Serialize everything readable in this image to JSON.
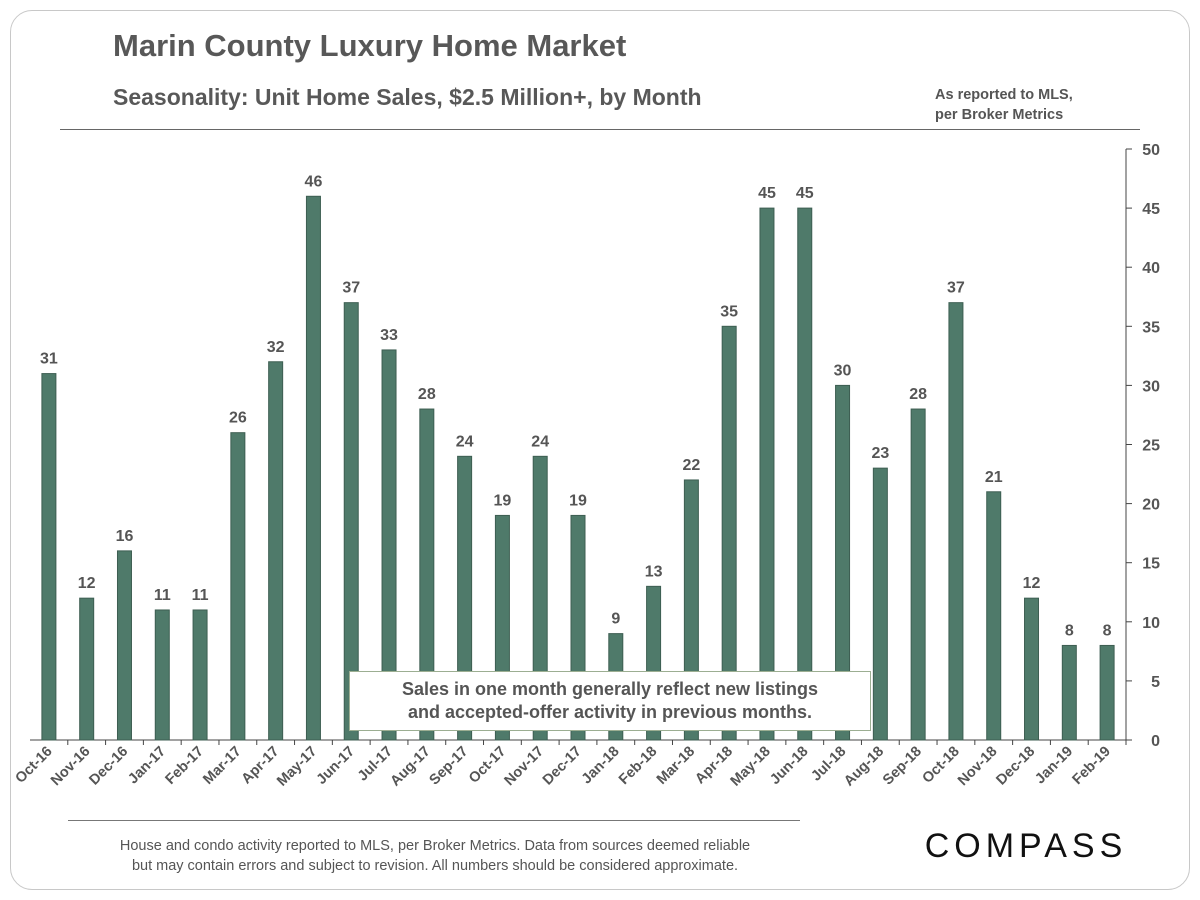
{
  "header": {
    "title": "Marin County Luxury Home Market",
    "subtitle": "Seasonality:  Unit Home Sales, $2.5 Million+,  by Month",
    "source_line1": "As reported to MLS,",
    "source_line2": "per Broker Metrics"
  },
  "annotation": {
    "line1": "Sales in one month generally reflect new listings",
    "line2": "and accepted-offer activity in previous months."
  },
  "footer": {
    "line1": "House and condo activity reported to MLS, per Broker Metrics. Data from sources deemed reliable",
    "line2": "but may contain errors and subject to revision.  All numbers should be considered approximate.",
    "logo_text": "COMPASS"
  },
  "colors": {
    "bar": "#4f7a6a",
    "bar_edge": "#3d5e52",
    "text": "#555555",
    "axis": "#444444"
  },
  "chart_data": {
    "type": "bar",
    "title": "Seasonality:  Unit Home Sales, $2.5 Million+,  by Month",
    "xlabel": "",
    "ylabel": "",
    "y_axis_side": "right",
    "ylim": [
      0,
      50
    ],
    "yticks": [
      0,
      5,
      10,
      15,
      20,
      25,
      30,
      35,
      40,
      45,
      50
    ],
    "grid": false,
    "categories": [
      "Oct-16",
      "Nov-16",
      "Dec-16",
      "Jan-17",
      "Feb-17",
      "Mar-17",
      "Apr-17",
      "May-17",
      "Jun-17",
      "Jul-17",
      "Aug-17",
      "Sep-17",
      "Oct-17",
      "Nov-17",
      "Dec-17",
      "Jan-18",
      "Feb-18",
      "Mar-18",
      "Apr-18",
      "May-18",
      "Jun-18",
      "Jul-18",
      "Aug-18",
      "Sep-18",
      "Oct-18",
      "Nov-18",
      "Dec-18",
      "Jan-19",
      "Feb-19"
    ],
    "values": [
      31,
      12,
      16,
      11,
      11,
      26,
      32,
      46,
      37,
      33,
      28,
      24,
      19,
      24,
      19,
      9,
      13,
      22,
      35,
      45,
      45,
      30,
      23,
      28,
      37,
      21,
      12,
      8,
      8
    ]
  }
}
